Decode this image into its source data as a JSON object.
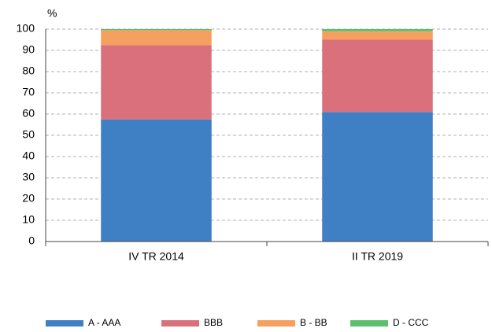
{
  "chart_data": {
    "type": "stacked_bar",
    "y_label": "%",
    "categories": [
      "IV TR 2014",
      "II TR 2019"
    ],
    "series": [
      {
        "name": "A - AAA",
        "color": "#3f7fc4",
        "values": [
          57.5,
          61
        ]
      },
      {
        "name": "BBB",
        "color": "#d9707c",
        "values": [
          35,
          34
        ]
      },
      {
        "name": "B - BB",
        "color": "#f5a05f",
        "values": [
          7,
          4
        ]
      },
      {
        "name": "D - CCC",
        "color": "#5cbf6c",
        "values": [
          0.5,
          1
        ]
      }
    ],
    "ylim": [
      0,
      100
    ],
    "yticks": [
      0,
      10,
      20,
      30,
      40,
      50,
      60,
      70,
      80,
      90,
      100
    ],
    "grid": true,
    "legend": "bottom"
  }
}
